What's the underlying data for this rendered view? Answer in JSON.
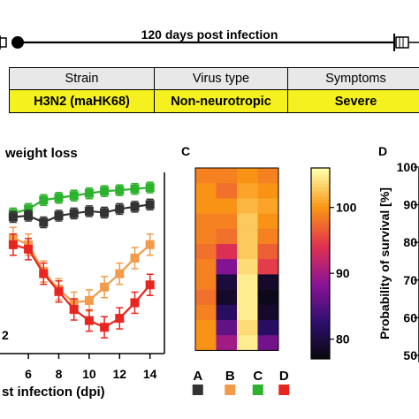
{
  "timeline": {
    "label": "120 days post infection"
  },
  "table": {
    "headers": [
      "Strain",
      "Virus type",
      "Symptoms"
    ],
    "row": [
      "H3N2 (maHK68)",
      "Non-neurotropic",
      "Severe"
    ],
    "row_color": "#f5f11f"
  },
  "panel_b": {
    "title": "weight loss",
    "partial_label": "2",
    "xlabel": "st infection (dpi)",
    "x_ticks": [
      "6",
      "8",
      "10",
      "12",
      "14"
    ]
  },
  "panel_c": {
    "letter": "C",
    "colorbar_ticks": [
      "100",
      "90",
      "80"
    ],
    "columns": [
      "A",
      "B",
      "C",
      "D"
    ],
    "column_colors": [
      "#333333",
      "#f29b4a",
      "#2db22d",
      "#e8251e"
    ]
  },
  "panel_d": {
    "letter": "D",
    "ylabel": "Probability of survival [%]",
    "y_ticks": [
      "100",
      "90",
      "80",
      "70",
      "60",
      "50"
    ]
  },
  "chart_data": [
    {
      "type": "line",
      "title": "weight loss",
      "xlabel": "st infection (dpi)",
      "ylabel": "",
      "xlim": [
        4.6,
        14.6
      ],
      "ylim": [
        70,
        110
      ],
      "series": [
        {
          "color": "#2db22d",
          "x": [
            5,
            6,
            7,
            8,
            9,
            10,
            11,
            12,
            13,
            14
          ],
          "y": [
            101,
            102,
            104,
            104.5,
            105,
            105.5,
            106,
            106.2,
            106.5,
            106.8
          ]
        },
        {
          "color": "#333333",
          "x": [
            5,
            6,
            7,
            8,
            9,
            10,
            11,
            12,
            13,
            14
          ],
          "y": [
            100.2,
            100.5,
            99,
            100.5,
            101,
            101.5,
            101.2,
            102,
            102.5,
            103
          ]
        },
        {
          "color": "#f29b4a",
          "x": [
            5,
            6,
            7,
            8,
            9,
            10,
            11,
            12,
            13,
            14
          ],
          "y": [
            95.5,
            94,
            88,
            84,
            81,
            81.5,
            84.5,
            87.5,
            91,
            94
          ]
        },
        {
          "color": "#e8251e",
          "x": [
            5,
            6,
            7,
            8,
            9,
            10,
            11,
            12,
            13,
            14
          ],
          "y": [
            94,
            93,
            87.5,
            83.5,
            79.5,
            77,
            75.5,
            77.5,
            81,
            85
          ]
        }
      ]
    },
    {
      "type": "heatmap",
      "columns": [
        "A",
        "B",
        "C",
        "D"
      ],
      "colorbar_range": [
        77,
        106
      ],
      "colorbar_ticks": [
        100,
        90,
        80
      ],
      "values": [
        [
          99,
          99,
          100,
          99
        ],
        [
          100,
          98,
          101,
          100
        ],
        [
          100,
          100,
          102,
          101
        ],
        [
          99,
          99,
          103,
          100
        ],
        [
          99,
          98,
          103,
          99
        ],
        [
          98,
          94,
          103,
          97
        ],
        [
          99,
          88,
          104,
          95
        ],
        [
          99,
          80,
          105,
          79
        ],
        [
          98,
          79,
          105,
          78
        ],
        [
          99,
          82,
          105,
          79
        ],
        [
          100,
          86,
          104,
          82
        ],
        [
          100,
          90,
          105,
          87
        ]
      ]
    }
  ]
}
